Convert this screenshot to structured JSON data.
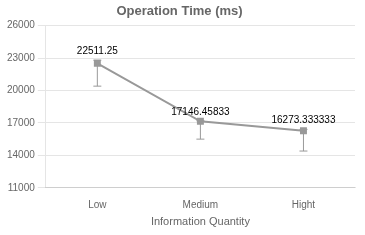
{
  "chart_data": {
    "type": "line",
    "title": "Operation Time (ms)",
    "x_label": "Information Quantity",
    "categories": [
      "Low",
      "Medium",
      "Hight"
    ],
    "values": [
      22511.25,
      17146.45833,
      16273.333333
    ],
    "ci_lower": [
      20400,
      15500,
      14400
    ],
    "ci_upper": [
      22800,
      17200,
      16400
    ],
    "annotations": [
      "22511.25",
      "17146.45833",
      "16273.333333"
    ],
    "color": "#999999",
    "marker": "square",
    "ylim": [
      11000,
      26000
    ],
    "yticks": [
      11000,
      14000,
      17000,
      20000,
      23000,
      26000
    ],
    "grid": true
  }
}
